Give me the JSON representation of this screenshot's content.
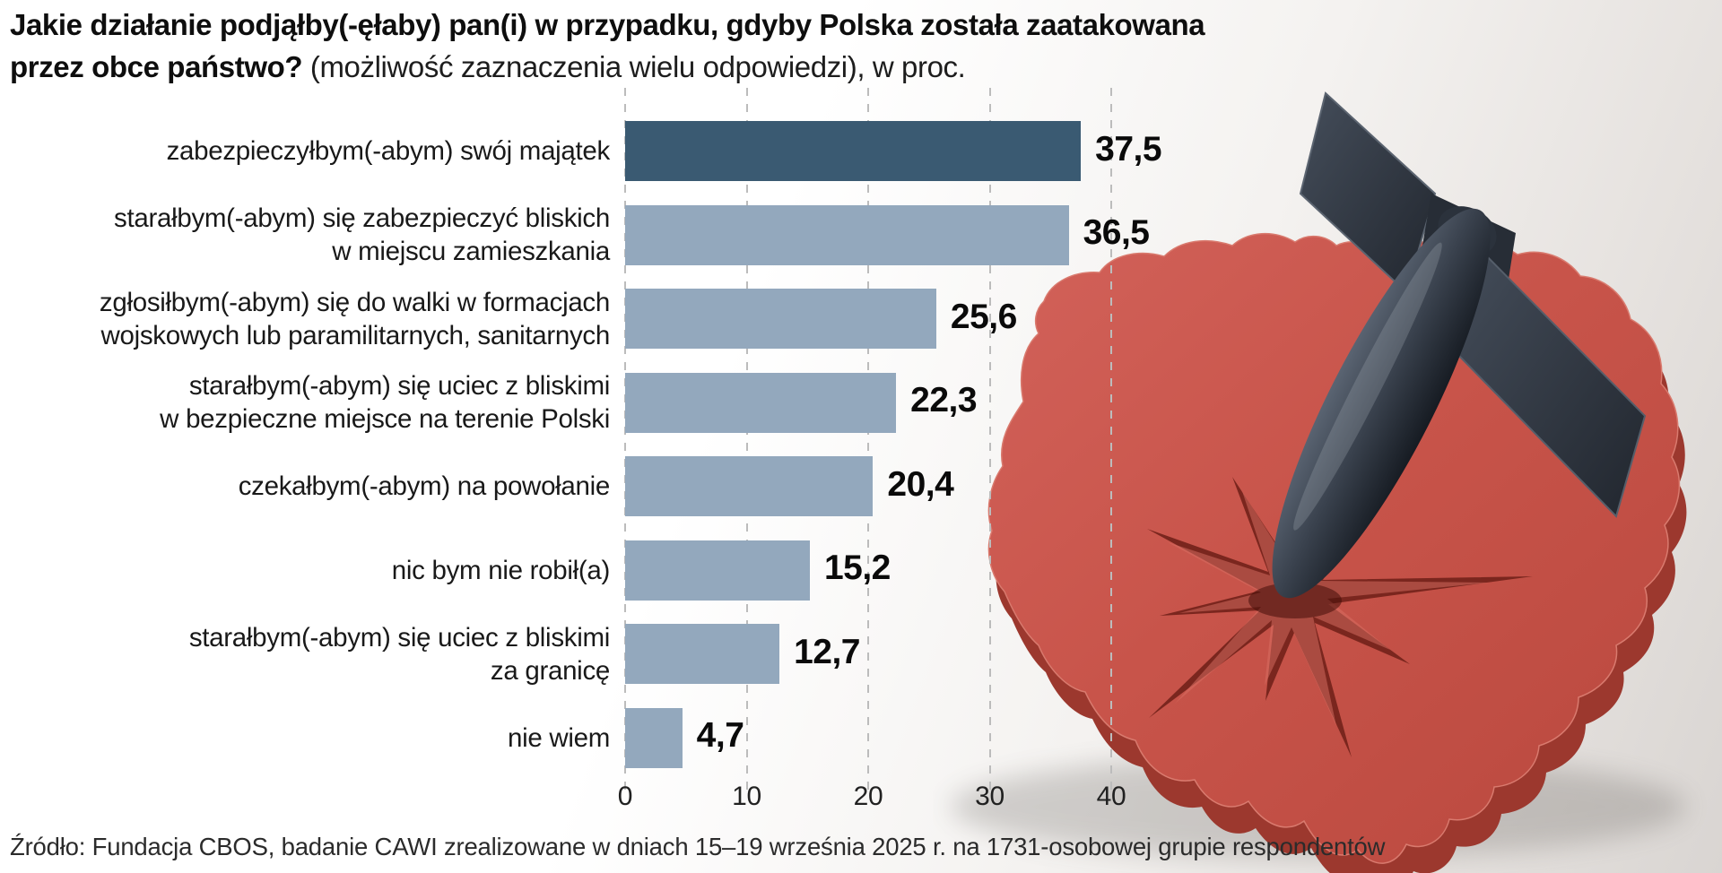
{
  "title": {
    "line1_bold": "Jakie działanie podjąłby(-ęłaby) pan(i) w przypadku, gdyby Polska została zaatakowana",
    "line2_bold": "przez obce państwo?",
    "line2_regular": " (możliwość zaznaczenia wielu odpowiedzi), w proc."
  },
  "chart_data": {
    "type": "bar",
    "orientation": "horizontal",
    "title": "Jakie działanie podjąłby(-ęłaby) pan(i) w przypadku, gdyby Polska została zaatakowana przez obce państwo?",
    "subtitle": "(możliwość zaznaczenia wielu odpowiedzi), w proc.",
    "xlabel": "",
    "ylabel": "",
    "xlim": [
      0,
      43
    ],
    "x_ticks": [
      0,
      10,
      20,
      30,
      40
    ],
    "grid": "dashed-vertical",
    "legend": "none",
    "categories": [
      "zabezpieczyłbym(-abym) swój majątek",
      "starałbym(-abym) się zabezpieczyć bliskich w miejscu zamieszkania",
      "zgłosiłbym(-abym) się do walki w formacjach wojskowych lub paramilitarnych, sanitarnych",
      "starałbym(-abym) się uciec z bliskimi w bezpieczne miejsce na terenie Polski",
      "czekałbym(-abym) na powołanie",
      "nic bym nie robił(a)",
      "starałbym(-abym) się uciec z bliskimi za granicę",
      "nie wiem"
    ],
    "category_lines": [
      [
        "zabezpieczyłbym(-abym) swój majątek"
      ],
      [
        "starałbym(-abym) się zabezpieczyć bliskich",
        "w miejscu zamieszkania"
      ],
      [
        "zgłosiłbym(-abym) się do walki w formacjach",
        "wojskowych lub paramilitarnych, sanitarnych"
      ],
      [
        "starałbym(-abym) się uciec z bliskimi",
        "w bezpieczne miejsce na terenie Polski"
      ],
      [
        "czekałbym(-abym) na powołanie"
      ],
      [
        "nic bym nie robił(a)"
      ],
      [
        "starałbym(-abym) się uciec z bliskimi",
        "za granicę"
      ],
      [
        "nie wiem"
      ]
    ],
    "values": [
      37.5,
      36.5,
      25.6,
      22.3,
      20.4,
      15.2,
      12.7,
      4.7
    ],
    "value_labels": [
      "37,5",
      "36,5",
      "25,6",
      "22,3",
      "20,4",
      "15,2",
      "12,7",
      "4,7"
    ],
    "highlight_index": 0,
    "highlight_bar_color": "#3a5a72",
    "bar_color": "#93a8bd",
    "gridline_color": "#bcbcbc",
    "value_color": "#0a0a0a",
    "label_color": "#191919"
  },
  "source": "Źródło: Fundacja CBOS, badanie CAWI zrealizowane w dniach 15–19 września 2025 r. na 1731-osobowej grupie respondentów",
  "illustration": {
    "description": "3D red map of Poland with a dark aerial bomb stuck nose-down in its center and a radial impact crack",
    "map_top_color": "#c8544a",
    "map_side_color": "#9c382e",
    "crack_color": "#7a261e",
    "bomb_color": "#3a424e",
    "backdrop_color": "#e6e2df"
  }
}
